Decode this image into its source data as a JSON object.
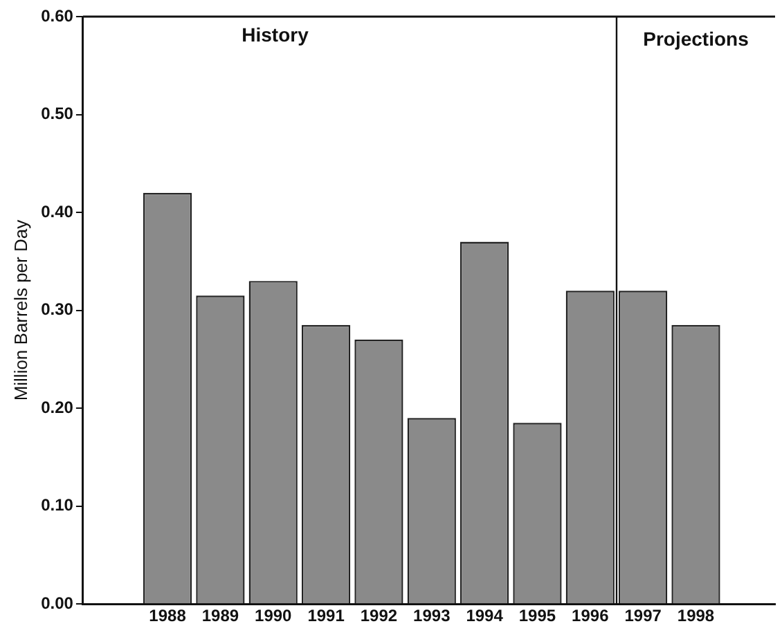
{
  "chart_data": {
    "type": "bar",
    "ylabel": "Million Barrels per Day",
    "x": [
      1988,
      1989,
      1990,
      1991,
      1992,
      1993,
      1994,
      1995,
      1996,
      1997,
      1998
    ],
    "values": [
      0.42,
      0.315,
      0.33,
      0.285,
      0.27,
      0.19,
      0.37,
      0.185,
      0.32,
      0.32,
      0.285
    ],
    "color": "#8a8a8a",
    "xlim": [
      1986.4,
      1999.5
    ],
    "xticks": [
      1988,
      1989,
      1990,
      1991,
      1992,
      1993,
      1994,
      1995,
      1996,
      1997,
      1998
    ],
    "ylim": [
      0,
      0.6
    ],
    "yticks": [
      {
        "value": 0,
        "label": "0.00"
      },
      {
        "value": 0.1,
        "label": "0.10"
      },
      {
        "value": 0.2,
        "label": "0.20"
      },
      {
        "value": 0.3,
        "label": "0.30"
      },
      {
        "value": 0.4,
        "label": "0.40"
      },
      {
        "value": 0.5,
        "label": "0.50"
      },
      {
        "value": 0.6,
        "label": "0.60"
      }
    ],
    "ref_lines": [
      {
        "axis": "x",
        "value": 1996.5
      }
    ],
    "annotations": [
      "History",
      "Projections"
    ],
    "grid": false,
    "legend": false
  }
}
